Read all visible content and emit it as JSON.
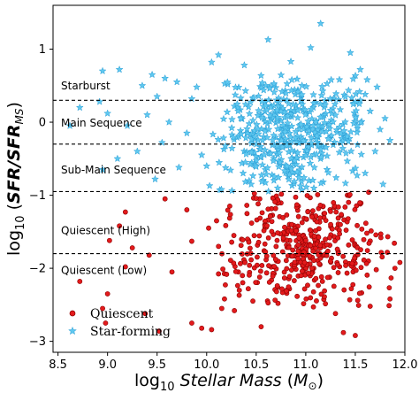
{
  "chart_data": {
    "type": "scatter",
    "title": "",
    "xlabel_prefix": "log",
    "xlabel_sub": "10",
    "xlabel_italic": "Stellar Mass",
    "xlabel_unit_open": " (",
    "xlabel_unit": "M",
    "xlabel_unit_sub": "⊙",
    "xlabel_unit_close": ")",
    "ylabel_prefix": "log",
    "ylabel_sub": "10",
    "ylabel_open": " (",
    "ylabel_italic_a": "SFR",
    "ylabel_slash": "/",
    "ylabel_italic_b": "SFR",
    "ylabel_sub_b": "MS",
    "ylabel_close": ")",
    "xlim": [
      8.45,
      12.0
    ],
    "ylim": [
      -3.15,
      1.6
    ],
    "x_ticks": [
      8.5,
      9.0,
      9.5,
      10.0,
      10.5,
      11.0,
      11.5,
      12.0
    ],
    "x_tick_labels": [
      "8.5",
      "9.0",
      "9.5",
      "10.0",
      "10.5",
      "11.0",
      "11.5",
      "12.0"
    ],
    "y_ticks": [
      -3,
      -2,
      -1,
      0,
      1
    ],
    "y_tick_labels": [
      "−3",
      "−2",
      "−1",
      "0",
      "1"
    ],
    "thresholds": [
      0.3,
      -0.3,
      -0.95,
      -1.8
    ],
    "regions": [
      {
        "label": "Starburst",
        "y": 0.45
      },
      {
        "label": "Main Sequence",
        "y": -0.06
      },
      {
        "label": "Sub-Main Sequence",
        "y": -0.7
      },
      {
        "label": "Quiescent (High)",
        "y": -1.53
      },
      {
        "label": "Quiescent (Low)",
        "y": -2.08
      }
    ],
    "legend_position": "lower-left",
    "grid": false,
    "series": [
      {
        "name": "Quiescent",
        "color": "#e31a1c",
        "edge_color": "#8b0000",
        "marker": "circle",
        "points": [
          [
            9.52,
            -2.86
          ],
          [
            9.95,
            -2.82
          ],
          [
            10.05,
            -2.84
          ],
          [
            9.85,
            -2.75
          ],
          [
            8.98,
            -2.75
          ],
          [
            9.38,
            -2.62
          ],
          [
            10.28,
            -2.58
          ],
          [
            10.55,
            -2.8
          ],
          [
            10.72,
            -2.48
          ],
          [
            9.0,
            -2.35
          ],
          [
            8.95,
            -2.55
          ],
          [
            8.72,
            -2.18
          ],
          [
            9.18,
            -1.98
          ],
          [
            9.65,
            -2.05
          ],
          [
            9.42,
            -1.82
          ],
          [
            9.25,
            -1.72
          ],
          [
            9.02,
            -1.62
          ],
          [
            9.18,
            -1.23
          ],
          [
            9.12,
            -1.42
          ],
          [
            10.1,
            -1.35
          ],
          [
            9.8,
            -1.2
          ],
          [
            9.58,
            -1.05
          ],
          [
            9.85,
            -1.63
          ],
          [
            10.02,
            -1.45
          ],
          [
            10.12,
            -1.7
          ],
          [
            10.18,
            -2.42
          ],
          [
            10.32,
            -2.05
          ],
          [
            10.42,
            -2.28
          ],
          [
            11.38,
            -2.88
          ],
          [
            11.5,
            -2.92
          ],
          [
            11.3,
            -2.62
          ],
          [
            11.65,
            -2.52
          ],
          [
            11.85,
            -2.42
          ],
          [
            11.9,
            -2.0
          ],
          [
            11.95,
            -1.92
          ],
          [
            11.42,
            -1.0
          ],
          [
            11.55,
            -1.12
          ]
        ],
        "cluster": {
          "count": 440,
          "x_range": [
            10.1,
            11.9
          ],
          "y_range": [
            -2.55,
            -0.95
          ],
          "x_center": 10.95,
          "y_center": -1.7,
          "seed": 17
        }
      },
      {
        "name": "Star-forming",
        "color": "#5ec8f0",
        "edge_color": "#2b9fd6",
        "marker": "star",
        "points": [
          [
            11.15,
            1.35
          ],
          [
            10.62,
            1.13
          ],
          [
            11.05,
            1.02
          ],
          [
            10.12,
            0.92
          ],
          [
            11.45,
            0.95
          ],
          [
            10.05,
            0.82
          ],
          [
            10.38,
            0.78
          ],
          [
            10.85,
            0.83
          ],
          [
            9.12,
            0.72
          ],
          [
            8.95,
            0.7
          ],
          [
            9.45,
            0.65
          ],
          [
            9.58,
            0.6
          ],
          [
            9.7,
            0.55
          ],
          [
            9.35,
            0.5
          ],
          [
            9.9,
            0.48
          ],
          [
            11.55,
            0.72
          ],
          [
            11.62,
            0.58
          ],
          [
            11.72,
            0.48
          ],
          [
            11.6,
            0.38
          ],
          [
            11.55,
            0.3
          ],
          [
            9.5,
            0.35
          ],
          [
            9.85,
            0.32
          ],
          [
            9.0,
            0.12
          ],
          [
            9.2,
            -0.05
          ],
          [
            9.4,
            0.1
          ],
          [
            9.62,
            0.0
          ],
          [
            9.8,
            -0.15
          ],
          [
            9.3,
            -0.4
          ],
          [
            9.55,
            -0.28
          ],
          [
            9.95,
            -0.45
          ],
          [
            8.95,
            -0.65
          ],
          [
            9.1,
            -0.5
          ],
          [
            8.62,
            -0.05
          ],
          [
            8.92,
            0.28
          ],
          [
            8.72,
            0.2
          ],
          [
            9.72,
            -0.62
          ],
          [
            9.48,
            -0.78
          ],
          [
            10.0,
            -0.6
          ],
          [
            11.75,
            -0.1
          ],
          [
            11.8,
            0.05
          ],
          [
            11.7,
            -0.4
          ],
          [
            11.85,
            -0.25
          ],
          [
            11.6,
            -0.7
          ],
          [
            11.78,
            -0.85
          ],
          [
            11.65,
            0.15
          ]
        ],
        "cluster": {
          "count": 480,
          "x_range": [
            10.0,
            11.6
          ],
          "y_range": [
            -0.95,
            0.65
          ],
          "x_center": 10.85,
          "y_center": -0.15,
          "seed": 29
        }
      }
    ]
  }
}
